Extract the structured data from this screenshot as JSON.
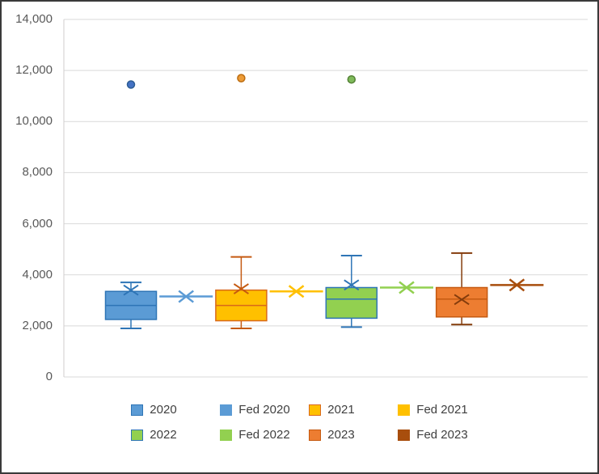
{
  "window": {
    "background": "#FFFFFF",
    "frame_border_color": "#3A3A3A"
  },
  "chart_data": {
    "type": "box",
    "title": "",
    "xlabel": "",
    "ylabel": "",
    "grid": true,
    "gridline_color": "#D9D9D9",
    "axis_line_color": "#D0CECE",
    "axis_label_color": "#595959",
    "y_axis": {
      "min": 0,
      "max": 14000,
      "tick_interval": 2000,
      "tick_labels": [
        "0",
        "2,000",
        "4,000",
        "6,000",
        "8,000",
        "10,000",
        "12,000",
        "14,000"
      ]
    },
    "legend": {
      "position": "bottom",
      "text_color": "#3F3F3F",
      "rows": [
        [
          "2020",
          "Fed 2020",
          "2021",
          "Fed 2021"
        ],
        [
          "2022",
          "Fed 2022",
          "2023",
          "Fed 2023"
        ]
      ]
    },
    "series": [
      {
        "name": "2020",
        "kind": "box",
        "min": 1900,
        "q1": 2250,
        "median": 2800,
        "q3": 3350,
        "max": 3700,
        "mean": 3400,
        "outliers": [
          11450
        ],
        "fill": "#5B9BD5",
        "edge": "#2E75B6",
        "whisker": "#2E75B6",
        "dot_fill": "#4472C4",
        "dot_edge": "#2E5E94"
      },
      {
        "name": "Fed 2020",
        "kind": "line",
        "value": 3150,
        "color": "#5B9BD5"
      },
      {
        "name": "2021",
        "kind": "box",
        "min": 1900,
        "q1": 2200,
        "median": 2800,
        "q3": 3400,
        "max": 4700,
        "mean": 3450,
        "outliers": [
          11700
        ],
        "fill": "#FFC000",
        "edge": "#D9691A",
        "whisker": "#C55A11",
        "dot_fill": "#ED9C38",
        "dot_edge": "#BC6C0F"
      },
      {
        "name": "Fed 2021",
        "kind": "line",
        "value": 3350,
        "color": "#FFC000"
      },
      {
        "name": "2022",
        "kind": "box",
        "min": 1950,
        "q1": 2300,
        "median": 3050,
        "q3": 3500,
        "max": 4750,
        "mean": 3600,
        "outliers": [
          11650
        ],
        "fill": "#92D050",
        "edge": "#2E75B6",
        "whisker": "#2E75B6",
        "dot_fill": "#7FBA5B",
        "dot_edge": "#548235"
      },
      {
        "name": "Fed 2022",
        "kind": "line",
        "value": 3500,
        "color": "#92D050"
      },
      {
        "name": "2023",
        "kind": "box",
        "min": 2050,
        "q1": 2350,
        "median": 3050,
        "q3": 3500,
        "max": 4850,
        "mean": 3030,
        "outliers": [],
        "fill": "#ED7D31",
        "edge": "#C55A11",
        "whisker": "#843C0C",
        "dot_fill": "#ED7D31",
        "dot_edge": "#843C0C"
      },
      {
        "name": "Fed 2023",
        "kind": "line",
        "value": 3600,
        "color": "#A84E0D"
      }
    ]
  }
}
